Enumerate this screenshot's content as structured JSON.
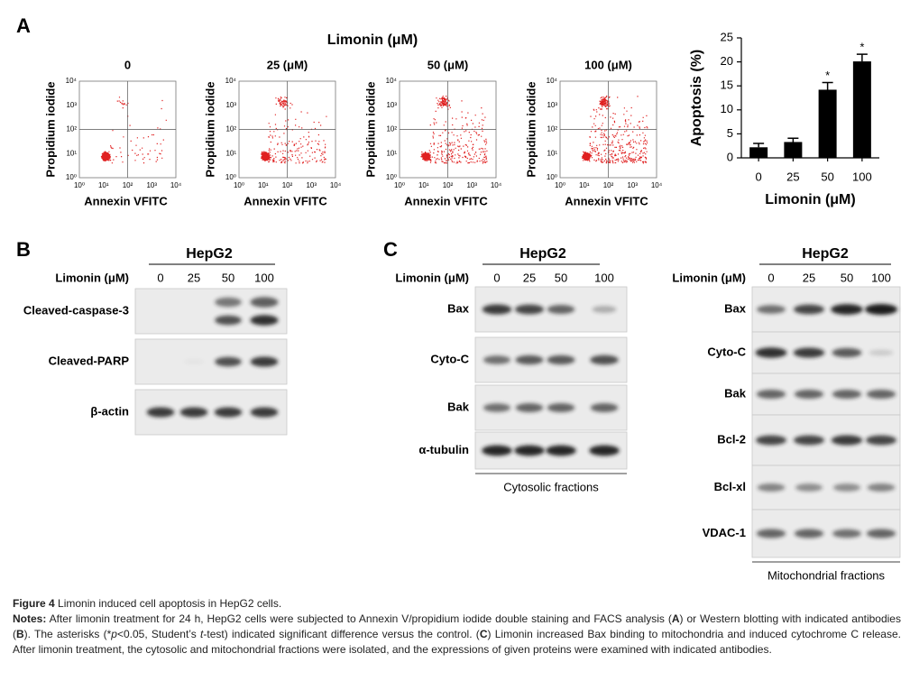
{
  "panel_a": {
    "label": "A",
    "title": "Limonin (μM)",
    "plots": [
      {
        "label": "0"
      },
      {
        "label": "25 (μM)"
      },
      {
        "label": "50 (μM)"
      },
      {
        "label": "100 (μM)"
      }
    ],
    "y_axis_label": "Propidium iodide",
    "x_axis_label": "Annexin VFITC",
    "ticks": [
      "10⁰",
      "10¹",
      "10²",
      "10³",
      "10⁴"
    ]
  },
  "chart_data": {
    "type": "bar",
    "categories": [
      "0",
      "25",
      "50",
      "100"
    ],
    "values": [
      2.2,
      3.3,
      14.2,
      20.1
    ],
    "errors": [
      0.8,
      0.8,
      1.5,
      1.5
    ],
    "significance": [
      null,
      null,
      "*",
      "*"
    ],
    "color": "#000000",
    "ylim": [
      0,
      25
    ],
    "yticks": [
      0,
      5,
      10,
      15,
      20,
      25
    ],
    "y_label": "Apoptosis (%)",
    "x_label": "Limonin (μM)"
  },
  "panel_b": {
    "label": "B",
    "cell_line": "HepG2",
    "treatment_label": "Limonin (μM)",
    "lanes": [
      "0",
      "25",
      "50",
      "100"
    ],
    "rows": [
      "Cleaved-caspase-3",
      "Cleaved-PARP",
      "β-actin"
    ]
  },
  "panel_c": {
    "label": "C",
    "cytosolic": {
      "cell_line": "HepG2",
      "treatment_label": "Limonin (μM)",
      "lanes": [
        "0",
        "25",
        "50",
        "100"
      ],
      "rows": [
        "Bax",
        "Cyto-C",
        "Bak",
        "α-tubulin"
      ],
      "fraction_label": "Cytosolic fractions"
    },
    "mitochondrial": {
      "cell_line": "HepG2",
      "treatment_label": "Limonin (μM)",
      "lanes": [
        "0",
        "25",
        "50",
        "100"
      ],
      "rows": [
        "Bax",
        "Cyto-C",
        "Bak",
        "Bcl-2",
        "Bcl-xl",
        "VDAC-1"
      ],
      "fraction_label": "Mitochondrial fractions"
    }
  },
  "caption": {
    "figure": "Figure 4",
    "title": "Limonin induced cell apoptosis in HepG2 cells.",
    "notes": [
      "Notes:",
      " After limonin treatment for 24 h, HepG2 cells were subjected to Annexin V/propidium iodide double staining and FACS analysis (",
      "A",
      ") or Western blotting with indicated antibodies (",
      "B",
      "). The asterisks (*",
      "p",
      "<0.05, Student’s ",
      "t",
      "-test) indicated significant difference versus the control. (",
      "C",
      ") Limonin increased Bax binding to mitochondria and induced cytochrome C release. After limonin treatment, the cytosolic and mitochondrial fractions were isolated, and the expressions of given proteins were examined with indicated antibodies."
    ]
  }
}
